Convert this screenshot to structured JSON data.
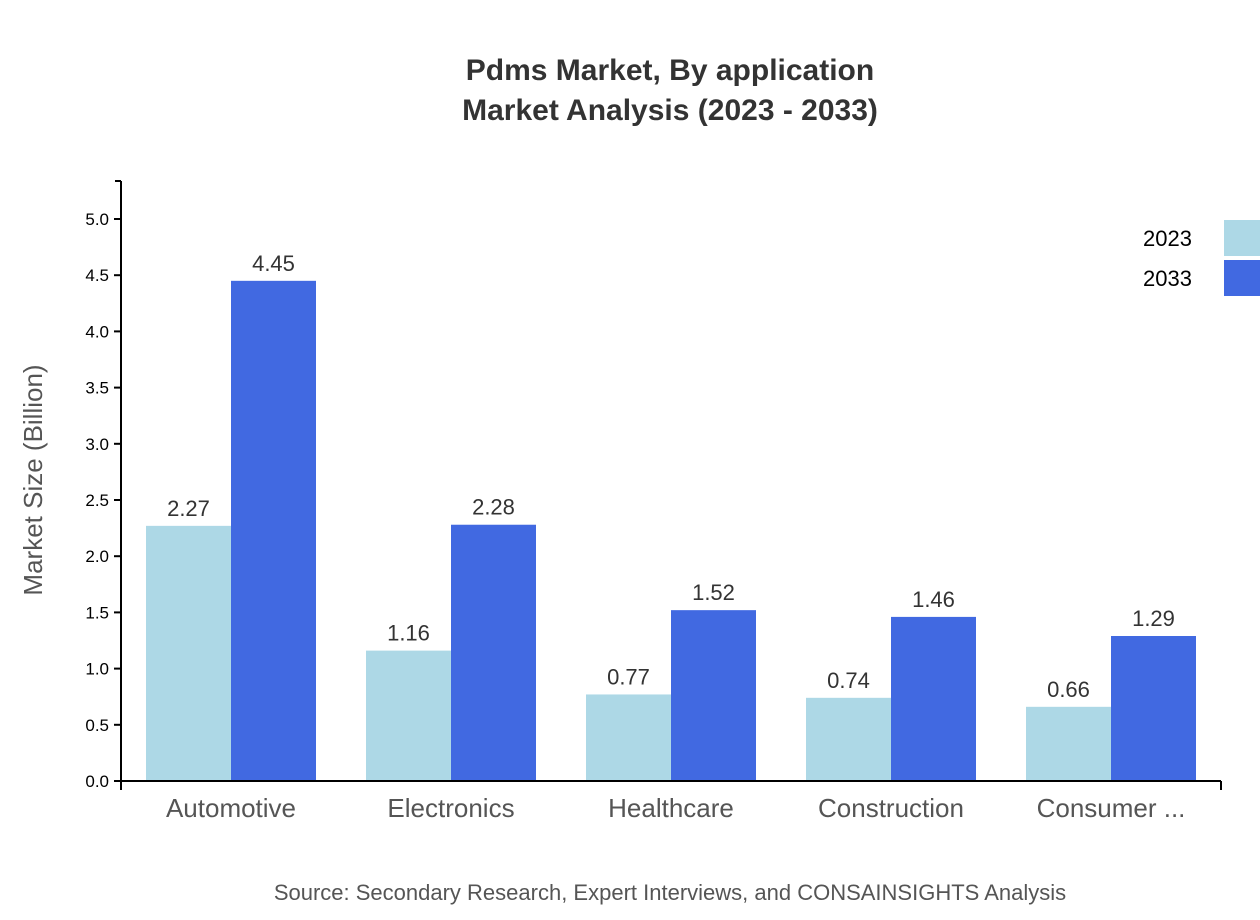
{
  "chart_data": {
    "type": "bar",
    "title": "Pdms Market, By application",
    "subtitle": "Market Analysis (2023 - 2033)",
    "ylabel": "Market Size (Billion)",
    "xlabel": "",
    "ylim": [
      0,
      5.34
    ],
    "yticks": [
      "0.0",
      "0.5",
      "1.0",
      "1.5",
      "2.0",
      "2.5",
      "3.0",
      "3.5",
      "4.0",
      "4.5",
      "5.0"
    ],
    "categories": [
      "Automotive",
      "Electronics",
      "Healthcare",
      "Construction",
      "Consumer ..."
    ],
    "series": [
      {
        "name": "2023",
        "color": "#add8e6",
        "values": [
          2.27,
          1.16,
          0.77,
          0.74,
          0.66
        ]
      },
      {
        "name": "2033",
        "color": "#4169e1",
        "values": [
          4.45,
          2.28,
          1.52,
          1.46,
          1.29
        ]
      }
    ],
    "legend_position": "top-right",
    "grid": false,
    "source": "Source: Secondary Research, Expert Interviews, and CONSAINSIGHTS Analysis"
  }
}
